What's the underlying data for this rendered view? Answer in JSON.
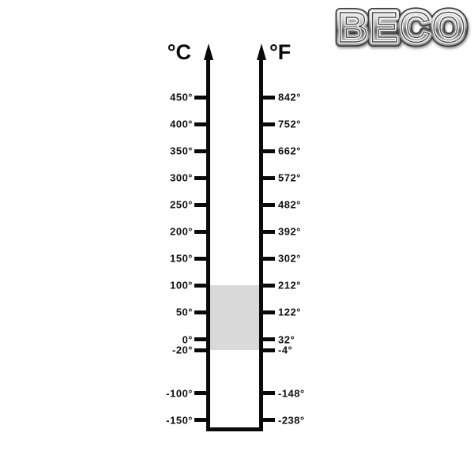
{
  "logo": {
    "text": "BECO"
  },
  "scale": {
    "left_unit": "°C",
    "right_unit": "°F",
    "ticks": [
      {
        "c": "450°",
        "f": "842°"
      },
      {
        "c": "400°",
        "f": "752°"
      },
      {
        "c": "350°",
        "f": "662°"
      },
      {
        "c": "300°",
        "f": "572°"
      },
      {
        "c": "250°",
        "f": "482°"
      },
      {
        "c": "200°",
        "f": "392°"
      },
      {
        "c": "150°",
        "f": "302°"
      },
      {
        "c": "100°",
        "f": "212°"
      },
      {
        "c": "50°",
        "f": "122°"
      },
      {
        "c": "0°",
        "f": "32°"
      },
      {
        "c": "-20°",
        "f": "-4°"
      },
      {
        "c": "-100°",
        "f": "-148°"
      },
      {
        "c": "-150°",
        "f": "-238°"
      }
    ],
    "highlight_range": {
      "c_from": "-20°",
      "c_to": "100°"
    },
    "colors": {
      "line": "#0a0a0a",
      "highlight_fill": "#d9d9d9",
      "background": "#ffffff"
    }
  }
}
